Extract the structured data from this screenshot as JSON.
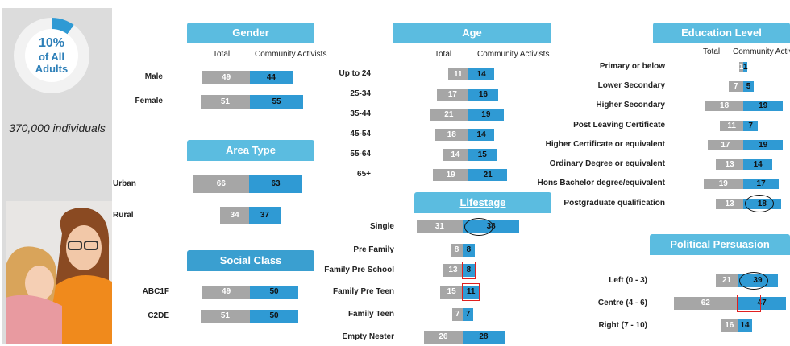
{
  "summary": {
    "pct": "10%",
    "line1": "of All",
    "line2": "Adults",
    "individuals": "370,000  individuals",
    "pct_value": 0.1
  },
  "colors": {
    "total": "#a6a6a6",
    "activists": "#2f9ad4",
    "header": "#5bbce0",
    "header_dark": "#3a9fd0",
    "circle": "#111111",
    "highlight": "#e02020"
  },
  "legend": {
    "total": "Total",
    "activists": "Community Activists"
  },
  "chart_data": [
    {
      "type": "bar",
      "title": "Gender",
      "categories": [
        "Male",
        "Female"
      ],
      "series": [
        {
          "name": "Total",
          "values": [
            49,
            51
          ]
        },
        {
          "name": "Community Activists",
          "values": [
            44,
            55
          ]
        }
      ]
    },
    {
      "type": "bar",
      "title": "Area Type",
      "categories": [
        "Urban",
        "Rural"
      ],
      "series": [
        {
          "name": "Total",
          "values": [
            66,
            34
          ]
        },
        {
          "name": "Community Activists",
          "values": [
            63,
            37
          ]
        }
      ]
    },
    {
      "type": "bar",
      "title": "Social Class",
      "categories": [
        "ABC1F",
        "C2DE"
      ],
      "series": [
        {
          "name": "Total",
          "values": [
            49,
            51
          ]
        },
        {
          "name": "Community Activists",
          "values": [
            50,
            50
          ]
        }
      ]
    },
    {
      "type": "bar",
      "title": "Age",
      "categories": [
        "Up to 24",
        "25-34",
        "35-44",
        "45-54",
        "55-64",
        "65+"
      ],
      "series": [
        {
          "name": "Total",
          "values": [
            11,
            17,
            21,
            18,
            14,
            19
          ]
        },
        {
          "name": "Community Activists",
          "values": [
            14,
            16,
            19,
            14,
            15,
            21
          ]
        }
      ]
    },
    {
      "type": "bar",
      "title": "Lifestage",
      "categories": [
        "Single",
        "Pre Family",
        "Family Pre School",
        "Family Pre Teen",
        "Family Teen",
        "Empty Nester"
      ],
      "series": [
        {
          "name": "Total",
          "values": [
            31,
            8,
            13,
            15,
            7,
            26
          ]
        },
        {
          "name": "Community Activists",
          "values": [
            38,
            8,
            8,
            11,
            7,
            28
          ]
        }
      ],
      "circled": [
        "Single"
      ],
      "boxed": [
        "Family Pre School",
        "Family Pre Teen"
      ]
    },
    {
      "type": "bar",
      "title": "Education Level",
      "categories": [
        "Primary or below",
        "Lower Secondary",
        "Higher Secondary",
        "Post Leaving Certificate",
        "Higher Certificate or equivalent",
        "Ordinary Degree or equivalent",
        "Hons Bachelor degree/equivalent",
        "Postgraduate qualification"
      ],
      "series": [
        {
          "name": "Total",
          "values": [
            1,
            7,
            18,
            11,
            17,
            13,
            19,
            13
          ]
        },
        {
          "name": "Community Activists",
          "values": [
            1,
            5,
            19,
            7,
            19,
            14,
            17,
            18
          ]
        }
      ],
      "circled": [
        "Postgraduate qualification"
      ]
    },
    {
      "type": "bar",
      "title": "Political Persuasion",
      "categories": [
        "Left (0 - 3)",
        "Centre (4 - 6)",
        "Right (7 - 10)"
      ],
      "series": [
        {
          "name": "Total",
          "values": [
            21,
            62,
            16
          ]
        },
        {
          "name": "Community Activists",
          "values": [
            39,
            47,
            14
          ]
        }
      ],
      "circled": [
        "Left (0 - 3)"
      ],
      "boxed": [
        "Centre (4 - 6)"
      ]
    }
  ]
}
